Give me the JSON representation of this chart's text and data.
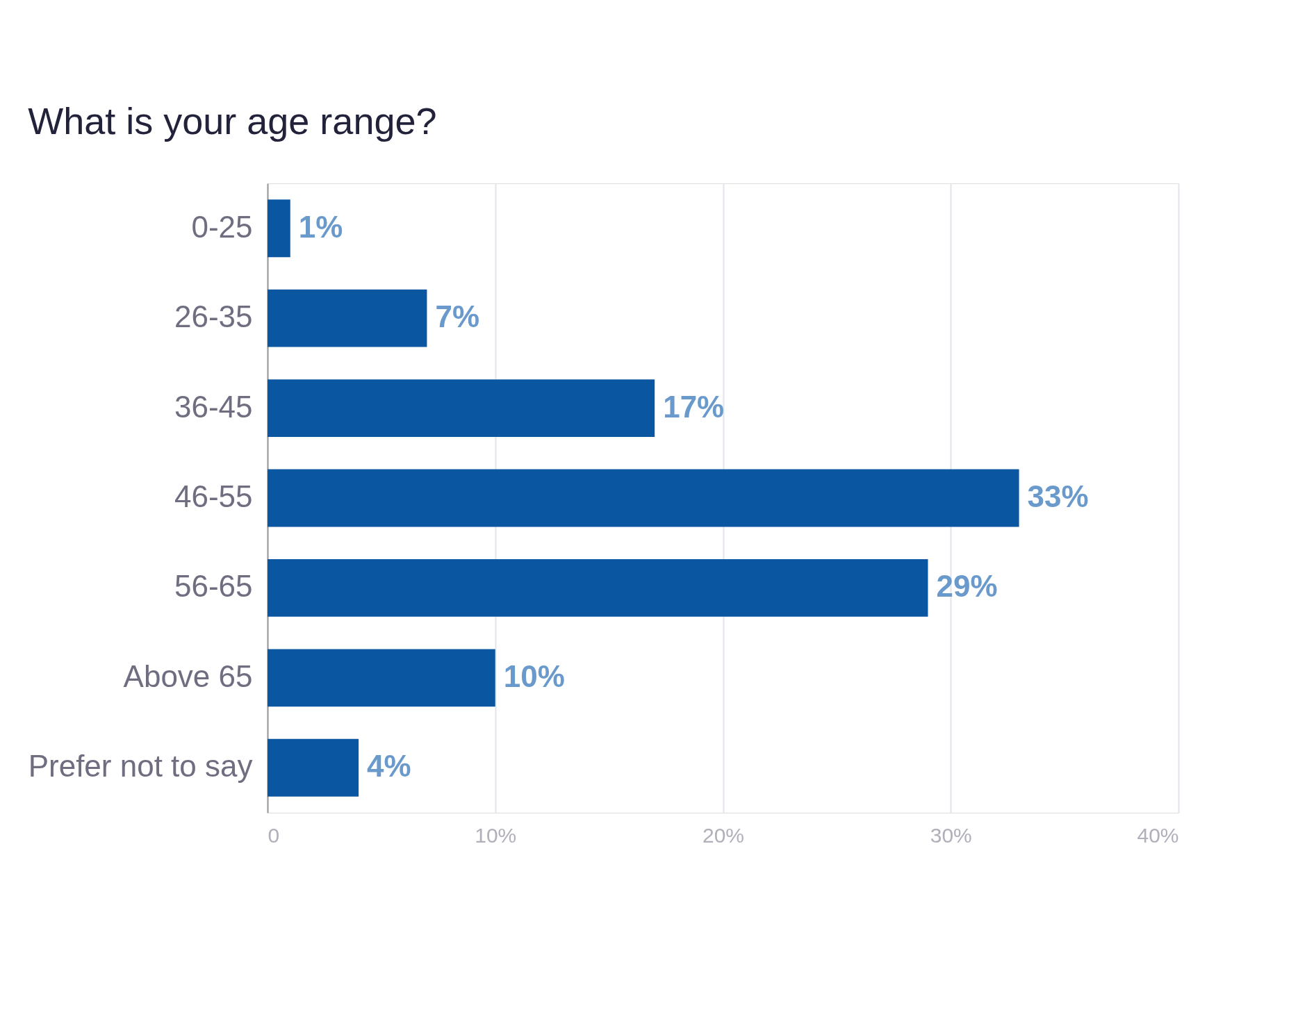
{
  "chart_data": {
    "type": "bar",
    "orientation": "horizontal",
    "title": "What is your age range?",
    "categories": [
      "0-25",
      "26-35",
      "36-45",
      "46-55",
      "56-65",
      "Above 65",
      "Prefer not to say"
    ],
    "values": [
      1,
      7,
      17,
      33,
      29,
      10,
      4
    ],
    "value_labels": [
      "1%",
      "7%",
      "17%",
      "33%",
      "29%",
      "10%",
      "4%"
    ],
    "color": "#0a56a0",
    "xlim": [
      0,
      40
    ],
    "xticks": [
      0,
      {
        "value": 10,
        "label": "10%"
      },
      {
        "value": 20,
        "label": "20%"
      },
      {
        "value": 30,
        "label": "30%"
      },
      {
        "value": 40,
        "label": "40%"
      }
    ],
    "grid": "x"
  }
}
